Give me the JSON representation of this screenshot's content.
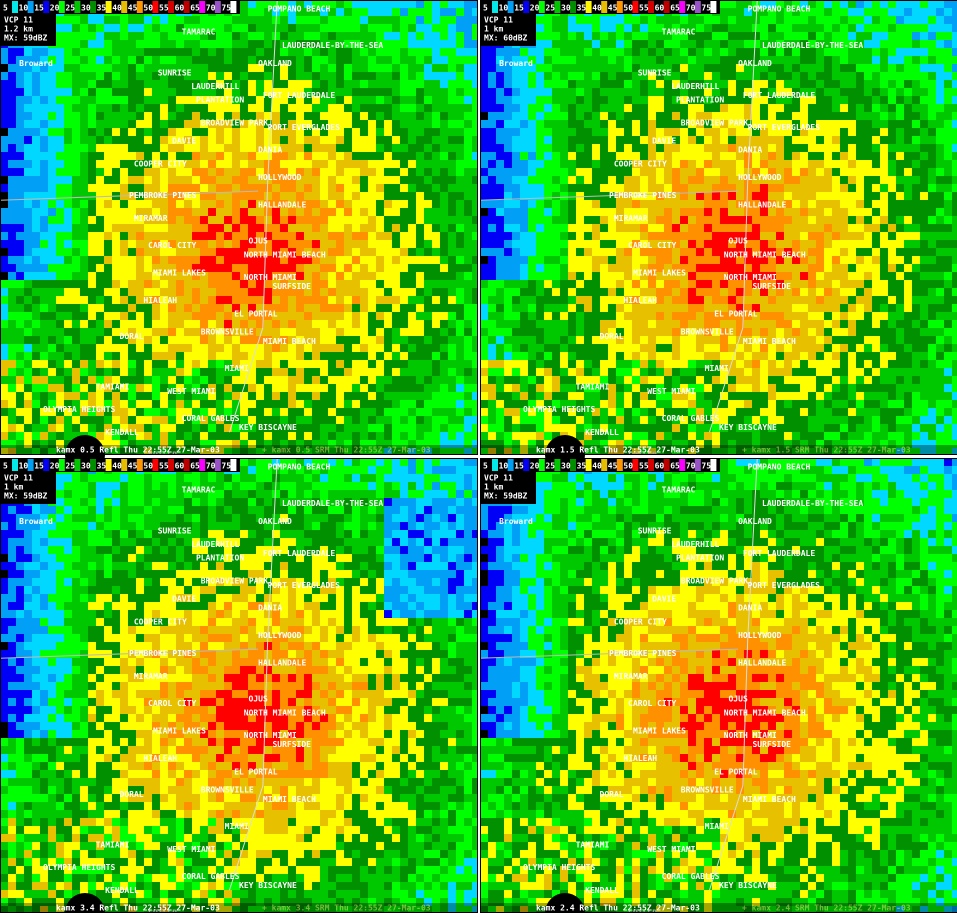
{
  "scale": {
    "values": [
      5,
      10,
      15,
      20,
      25,
      30,
      35,
      40,
      45,
      50,
      55,
      60,
      65,
      70,
      75
    ],
    "colors": [
      "#04e9e7",
      "#019ff4",
      "#0300f4",
      "#02fd02",
      "#01c501",
      "#008e00",
      "#fdf802",
      "#e5bc00",
      "#fd9500",
      "#fd0000",
      "#d40000",
      "#bc0000",
      "#f800fd",
      "#9854c6",
      "#ffffff"
    ]
  },
  "places": [
    "POMPANO BEACH",
    "TAMARAC",
    "LAUDERDALE-BY-THE-SEA",
    "SUNRISE",
    "LAUDERHILL",
    "OAKLAND",
    "PLANTATION",
    "FORT LAUDERDALE",
    "BROADVIEW PARK",
    "PORT EVERGLADES",
    "DAVIE",
    "DANIA",
    "COOPER CITY",
    "HOLLYWOOD",
    "PEMBROKE PINES",
    "HALLANDALE",
    "MIRAMAR",
    "OJUS",
    "CAROL CITY",
    "NORTH MIAMI BEACH",
    "NORTH MIAMI",
    "MIAMI LAKES",
    "SURFSIDE",
    "HIALEAH",
    "EL PORTAL",
    "DORAL",
    "BROWNSVILLE",
    "MIAMI BEACH",
    "MIAMI",
    "TAMIAMI",
    "WEST MIAMI",
    "OLYMPIA HEIGHTS",
    "CORAL GABLES",
    "KEY BISCAYNE",
    "KENDALL",
    "CUTLER",
    "Broward"
  ],
  "panels": [
    {
      "vcp": "VCP 11",
      "res": "1.2 km",
      "max": "MX: 59dBZ",
      "footer": "kamx 0.5 Refl Thu 22:55Z 27-Mar-03",
      "ghost": "+ kamx 0.5 SRM Thu 22:55Z 27-Mar-03"
    },
    {
      "vcp": "VCP 11",
      "res": "1 km",
      "max": "MX: 60dBZ",
      "footer": "kamx 1.5 Refl Thu 22:55Z 27-Mar-03",
      "ghost": "+ kamx 1.5 SRM Thu 22:55Z 27-Mar-03"
    },
    {
      "vcp": "VCP 11",
      "res": "1 km",
      "max": "MX: 59dBZ",
      "footer": "kamx 3.4 Refl Thu 22:55Z 27-Mar-03",
      "ghost": "+ kamx 3.4 SRM Thu 22:55Z 27-Mar-03"
    },
    {
      "vcp": "VCP 11",
      "res": "1 km",
      "max": "MX: 59dBZ",
      "footer": "kamx 2.4 Refl Thu 22:55Z 27-Mar-03",
      "ghost": "+ kamx 2.4 SRM Thu 22:55Z 27-Mar-03"
    }
  ]
}
